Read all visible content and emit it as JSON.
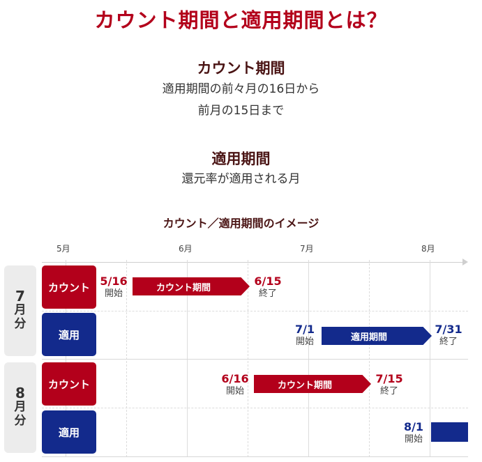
{
  "title": "カウント期間と適用期間とは？",
  "count_period": {
    "heading": "カウント期間",
    "line1": "適用期間の前々月の16日から",
    "line2": "前月の15日まで"
  },
  "apply_period": {
    "heading": "適用期間",
    "line1": "還元率が適用される月"
  },
  "timeline": {
    "title": "カウント／適用期間のイメージ",
    "months": [
      "5月",
      "6月",
      "7月",
      "8月"
    ],
    "groups": [
      {
        "label_num": "7",
        "label_month": "月",
        "label_suffix": "分",
        "count_label": "カウント",
        "apply_label": "適用",
        "count_start": {
          "date": "5/16",
          "note": "開始"
        },
        "count_arrow": "カウント期間",
        "count_end": {
          "date": "6/15",
          "note": "終了"
        },
        "apply_start": {
          "date": "7/1",
          "note": "開始"
        },
        "apply_arrow": "適用期間",
        "apply_end": {
          "date": "7/31",
          "note": "終了"
        }
      },
      {
        "label_num": "8",
        "label_month": "月",
        "label_suffix": "分",
        "count_label": "カウント",
        "apply_label": "適用",
        "count_start": {
          "date": "6/16",
          "note": "開始"
        },
        "count_arrow": "カウント期間",
        "count_end": {
          "date": "7/15",
          "note": "終了"
        },
        "apply_start": {
          "date": "8/1",
          "note": "開始"
        }
      }
    ]
  },
  "colors": {
    "red": "#b3001b",
    "blue": "#132a8c",
    "grey": "#ececec"
  }
}
